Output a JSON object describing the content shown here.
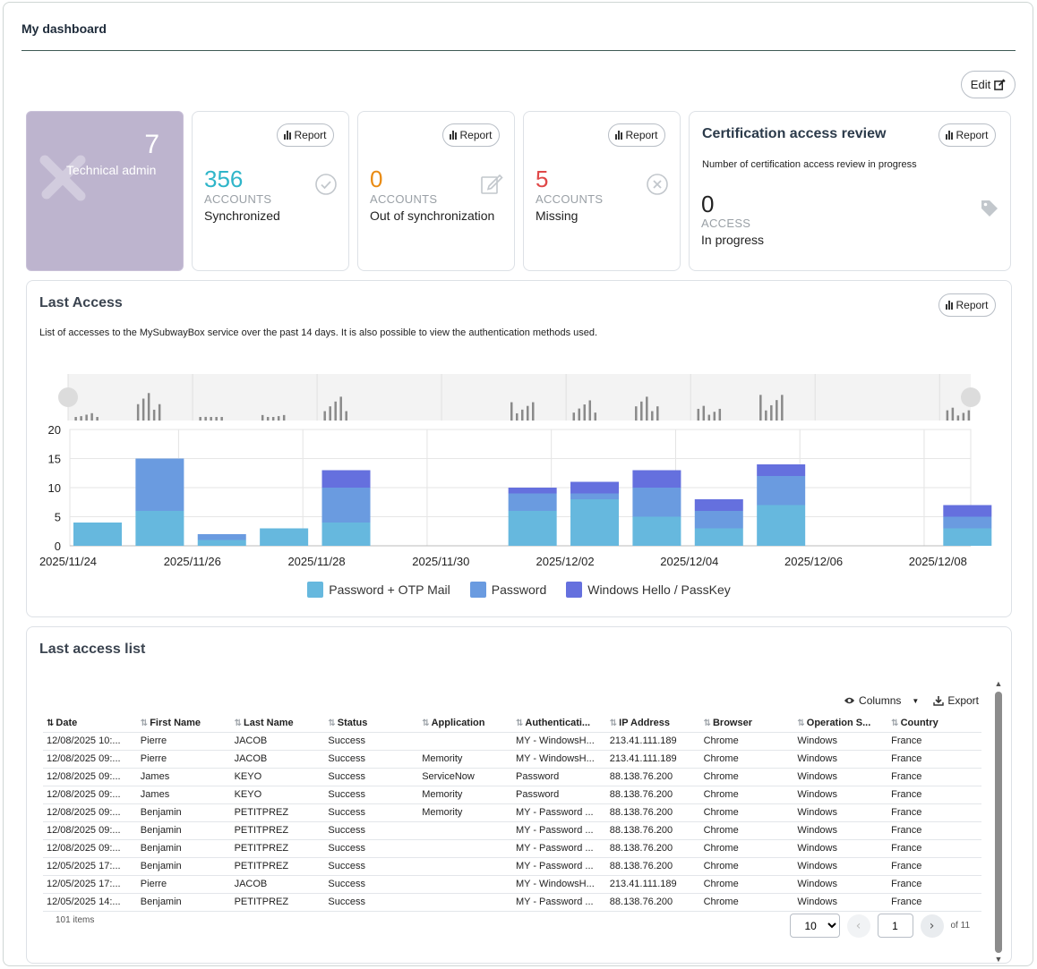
{
  "header": {
    "title": "My dashboard",
    "edit_label": "Edit"
  },
  "role": {
    "count": "7",
    "label": "Technical admin"
  },
  "report_label": "Report",
  "stats": [
    {
      "value": "356",
      "unit": "ACCOUNTS",
      "sub": "Synchronized",
      "color": "#2fb5c9",
      "icon": "check-circle-icon"
    },
    {
      "value": "0",
      "unit": "ACCOUNTS",
      "sub": "Out of synchronization",
      "color": "#e98b13",
      "icon": "edit-icon"
    },
    {
      "value": "5",
      "unit": "ACCOUNTS",
      "sub": "Missing",
      "color": "#e04848",
      "icon": "x-circle-icon"
    }
  ],
  "certification": {
    "title": "Certification access review",
    "description": "Number of certification access review in progress",
    "value": "0",
    "unit": "ACCESS",
    "sub": "In progress",
    "icon": "tag-icon"
  },
  "last_access": {
    "title": "Last Access",
    "description": "List of accesses to the MySubwayBox service over the past 14 days. It is also possible to view the authentication methods used."
  },
  "chart_data": {
    "type": "bar",
    "stacked": true,
    "title": "Last Access",
    "categories": [
      "2025/11/24",
      "2025/11/25",
      "2025/11/26",
      "2025/11/27",
      "2025/11/28",
      "2025/11/29",
      "2025/11/30",
      "2025/12/01",
      "2025/12/02",
      "2025/12/03",
      "2025/12/04",
      "2025/12/05",
      "2025/12/06",
      "2025/12/07",
      "2025/12/08"
    ],
    "tick_labels": [
      "2025/11/24",
      "2025/11/26",
      "2025/11/28",
      "2025/11/30",
      "2025/12/02",
      "2025/12/04",
      "2025/12/06",
      "2025/12/08"
    ],
    "series": [
      {
        "name": "Password + OTP Mail",
        "color": "#66b8de",
        "values": [
          4,
          6,
          1,
          3,
          4,
          0,
          0,
          6,
          8,
          5,
          3,
          7,
          0,
          0,
          3
        ]
      },
      {
        "name": "Password",
        "color": "#6a9be0",
        "values": [
          0,
          9,
          1,
          0,
          6,
          0,
          0,
          3,
          1,
          5,
          3,
          5,
          0,
          0,
          2
        ]
      },
      {
        "name": "Windows Hello / PassKey",
        "color": "#6570de",
        "values": [
          0,
          0,
          0,
          0,
          3,
          0,
          0,
          1,
          2,
          3,
          2,
          2,
          0,
          0,
          2
        ]
      }
    ],
    "yticks": [
      0,
      5,
      10,
      15,
      20
    ],
    "ylim": [
      0,
      20
    ],
    "grid": true,
    "legend": "bottom"
  },
  "access_list": {
    "title": "Last access list",
    "columns_label": "Columns",
    "export_label": "Export",
    "headers": [
      "Date",
      "First Name",
      "Last Name",
      "Status",
      "Application",
      "Authenticati...",
      "IP Address",
      "Browser",
      "Operation S...",
      "Country"
    ],
    "rows": [
      [
        "12/08/2025 10:...",
        "Pierre",
        "JACOB",
        "Success",
        "",
        "MY - WindowsH...",
        "213.41.111.189",
        "Chrome",
        "Windows",
        "France"
      ],
      [
        "12/08/2025 09:...",
        "Pierre",
        "JACOB",
        "Success",
        "Memority",
        "MY - WindowsH...",
        "213.41.111.189",
        "Chrome",
        "Windows",
        "France"
      ],
      [
        "12/08/2025 09:...",
        "James",
        "KEYO",
        "Success",
        "ServiceNow",
        "Password",
        "88.138.76.200",
        "Chrome",
        "Windows",
        "France"
      ],
      [
        "12/08/2025 09:...",
        "James",
        "KEYO",
        "Success",
        "Memority",
        "Password",
        "88.138.76.200",
        "Chrome",
        "Windows",
        "France"
      ],
      [
        "12/08/2025 09:...",
        "Benjamin",
        "PETITPREZ",
        "Success",
        "Memority",
        "MY - Password ...",
        "88.138.76.200",
        "Chrome",
        "Windows",
        "France"
      ],
      [
        "12/08/2025 09:...",
        "Benjamin",
        "PETITPREZ",
        "Success",
        "",
        "MY - Password ...",
        "88.138.76.200",
        "Chrome",
        "Windows",
        "France"
      ],
      [
        "12/08/2025 09:...",
        "Benjamin",
        "PETITPREZ",
        "Success",
        "",
        "MY - Password ...",
        "88.138.76.200",
        "Chrome",
        "Windows",
        "France"
      ],
      [
        "12/05/2025 17:...",
        "Benjamin",
        "PETITPREZ",
        "Success",
        "",
        "MY - Password ...",
        "88.138.76.200",
        "Chrome",
        "Windows",
        "France"
      ],
      [
        "12/05/2025 17:...",
        "Pierre",
        "JACOB",
        "Success",
        "",
        "MY - WindowsH...",
        "213.41.111.189",
        "Chrome",
        "Windows",
        "France"
      ],
      [
        "12/05/2025 14:...",
        "Benjamin",
        "PETITPREZ",
        "Success",
        "",
        "MY - Password ...",
        "88.138.76.200",
        "Chrome",
        "Windows",
        "France"
      ]
    ],
    "items_count": "101 items",
    "page_size": "10",
    "current_page": "1",
    "of_pages": "of 11"
  }
}
